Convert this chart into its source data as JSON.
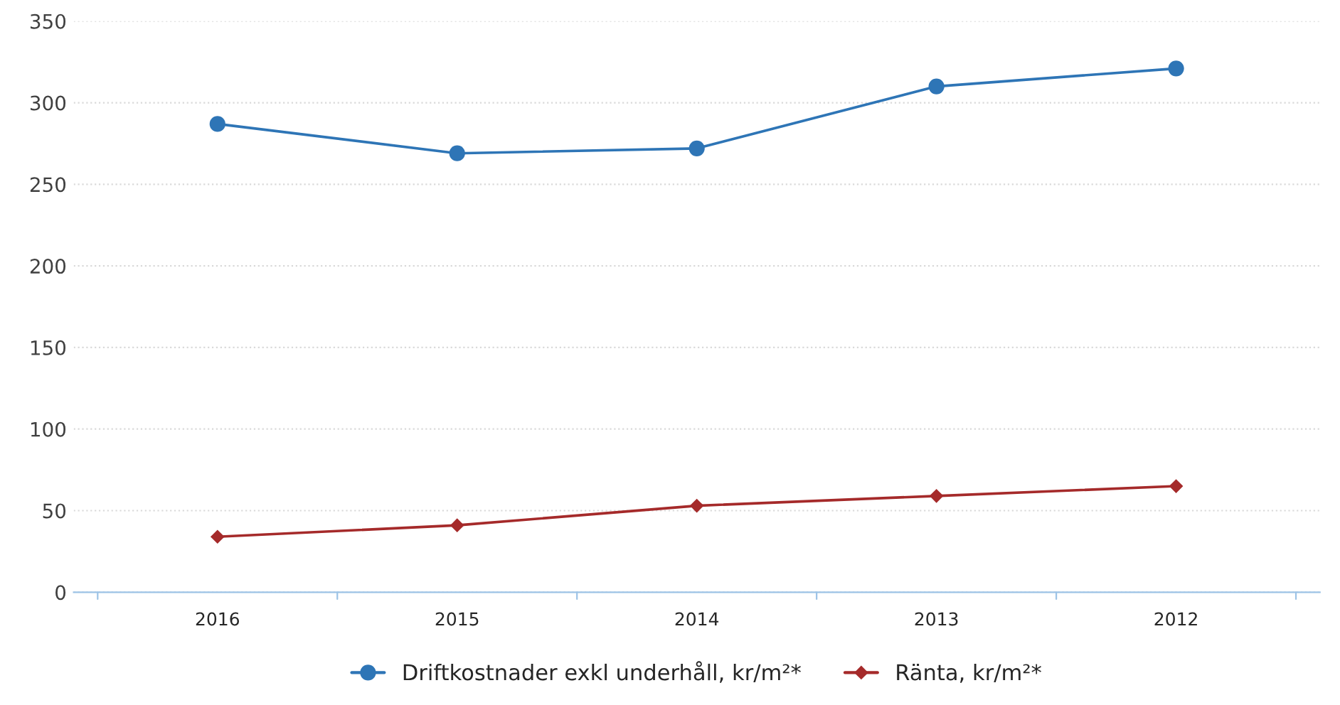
{
  "chart_data": {
    "type": "line",
    "categories": [
      "2016",
      "2015",
      "2014",
      "2013",
      "2012"
    ],
    "series": [
      {
        "name": "Driftkostnader exkl underhåll, kr/m²*",
        "color": "#2e75b6",
        "values": [
          287,
          269,
          272,
          310,
          321
        ],
        "marker": "circle"
      },
      {
        "name": "Ränta, kr/m²*",
        "color": "#a52a2a",
        "values": [
          34,
          41,
          53,
          59,
          65
        ],
        "marker": "diamond"
      }
    ],
    "ylim": [
      0,
      350
    ],
    "yticks": [
      0,
      50,
      100,
      150,
      200,
      250,
      300,
      350
    ],
    "grid": "y",
    "legend": "bottom",
    "line_style": "solid"
  }
}
